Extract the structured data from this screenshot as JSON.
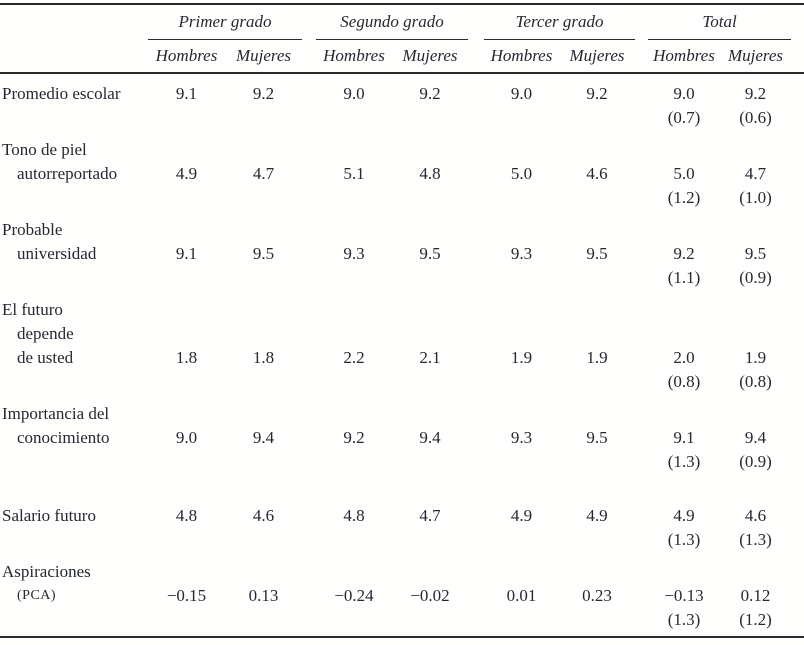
{
  "colors": {
    "ink": "#242833",
    "rule": "#2b2b2e",
    "background": "#ffffff"
  },
  "table": {
    "groups": [
      {
        "label": "Primer grado"
      },
      {
        "label": "Segundo grado"
      },
      {
        "label": "Tercer grado"
      },
      {
        "label": "Total"
      }
    ],
    "subheaders": [
      "Hombres",
      "Mujeres"
    ],
    "rows": [
      {
        "label_lines": [
          "Promedio escolar"
        ],
        "values": [
          "9.1",
          "9.2",
          "9.0",
          "9.2",
          "9.0",
          "9.2",
          "9.0",
          "9.2"
        ],
        "sd": [
          "(0.7)",
          "(0.6)"
        ]
      },
      {
        "label_lines": [
          "Tono de piel",
          "autorreportado"
        ],
        "values": [
          "4.9",
          "4.7",
          "5.1",
          "4.8",
          "5.0",
          "4.6",
          "5.0",
          "4.7"
        ],
        "sd": [
          "(1.2)",
          "(1.0)"
        ]
      },
      {
        "label_lines": [
          "Probable",
          "universidad"
        ],
        "values": [
          "9.1",
          "9.5",
          "9.3",
          "9.5",
          "9.3",
          "9.5",
          "9.2",
          "9.5"
        ],
        "sd": [
          "(1.1)",
          "(0.9)"
        ]
      },
      {
        "label_lines": [
          "El futuro",
          "depende",
          "de usted"
        ],
        "values": [
          "1.8",
          "1.8",
          "2.2",
          "2.1",
          "1.9",
          "1.9",
          "2.0",
          "1.9"
        ],
        "sd": [
          "(0.8)",
          "(0.8)"
        ]
      },
      {
        "label_lines": [
          "Importancia del",
          "conocimiento"
        ],
        "values": [
          "9.0",
          "9.4",
          "9.2",
          "9.4",
          "9.3",
          "9.5",
          "9.1",
          "9.4"
        ],
        "sd": [
          "(1.3)",
          "(0.9)"
        ]
      },
      {
        "label_lines": [
          "Salario futuro"
        ],
        "values": [
          "4.8",
          "4.6",
          "4.8",
          "4.7",
          "4.9",
          "4.9",
          "4.9",
          "4.6"
        ],
        "sd": [
          "(1.3)",
          "(1.3)"
        ],
        "big_gap": true
      },
      {
        "label_lines": [
          "Aspiraciones",
          "(PCA)"
        ],
        "values": [
          "−0.15",
          "0.13",
          "−0.24",
          "−0.02",
          "0.01",
          "0.23",
          "−0.13",
          "0.12"
        ],
        "sd": [
          "(1.3)",
          "(1.2)"
        ],
        "smallcaps_line": 1
      }
    ]
  }
}
